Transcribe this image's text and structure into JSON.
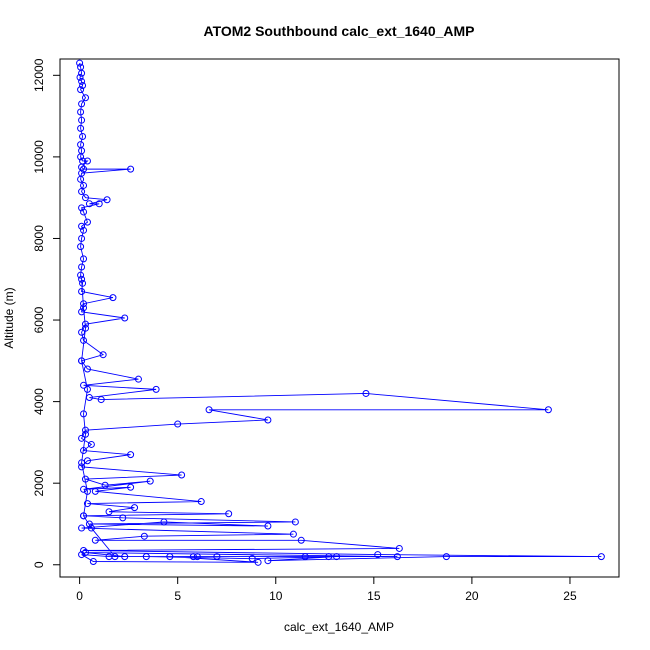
{
  "chart_data": {
    "type": "scatter",
    "title": "ATOM2 Southbound calc_ext_1640_AMP",
    "xlabel": "calc_ext_1640_AMP",
    "ylabel": "Altitude (m)",
    "xlim": [
      -1,
      27.5
    ],
    "ylim": [
      -300,
      12400
    ],
    "x_ticks": [
      0,
      5,
      10,
      15,
      20,
      25
    ],
    "y_ticks": [
      0,
      2000,
      4000,
      6000,
      8000,
      10000,
      12000
    ],
    "grid": false,
    "color": "#0000ff",
    "marker": "open-circle",
    "connected": true,
    "points": [
      [
        0.0,
        12300
      ],
      [
        0.05,
        12200
      ],
      [
        0.1,
        12050
      ],
      [
        0.02,
        11950
      ],
      [
        0.1,
        11850
      ],
      [
        0.15,
        11750
      ],
      [
        0.05,
        11650
      ],
      [
        0.3,
        11450
      ],
      [
        0.1,
        11300
      ],
      [
        0.05,
        11100
      ],
      [
        0.1,
        10900
      ],
      [
        0.05,
        10700
      ],
      [
        0.15,
        10500
      ],
      [
        0.05,
        10300
      ],
      [
        0.1,
        10150
      ],
      [
        0.05,
        10000
      ],
      [
        0.15,
        9900
      ],
      [
        0.4,
        9900
      ],
      [
        0.1,
        9750
      ],
      [
        0.2,
        9700
      ],
      [
        2.6,
        9700
      ],
      [
        0.1,
        9600
      ],
      [
        0.05,
        9450
      ],
      [
        0.2,
        9300
      ],
      [
        0.1,
        9150
      ],
      [
        0.3,
        9000
      ],
      [
        1.4,
        8950
      ],
      [
        0.5,
        8850
      ],
      [
        1.0,
        8850
      ],
      [
        0.1,
        8750
      ],
      [
        0.2,
        8650
      ],
      [
        0.4,
        8400
      ],
      [
        0.1,
        8300
      ],
      [
        0.2,
        8200
      ],
      [
        0.1,
        8000
      ],
      [
        0.05,
        7800
      ],
      [
        0.2,
        7500
      ],
      [
        0.1,
        7300
      ],
      [
        0.05,
        7100
      ],
      [
        0.15,
        6900
      ],
      [
        0.1,
        6700
      ],
      [
        1.7,
        6550
      ],
      [
        0.2,
        6400
      ],
      [
        0.1,
        6200
      ],
      [
        2.3,
        6050
      ],
      [
        0.3,
        5900
      ],
      [
        0.1,
        5700
      ],
      [
        0.2,
        5500
      ],
      [
        1.2,
        5150
      ],
      [
        0.1,
        5000
      ],
      [
        0.4,
        4800
      ],
      [
        3.0,
        4550
      ],
      [
        0.2,
        4400
      ],
      [
        3.9,
        4300
      ],
      [
        0.5,
        4100
      ],
      [
        1.1,
        4050
      ],
      [
        14.6,
        4200
      ],
      [
        23.9,
        3800
      ],
      [
        6.6,
        3800
      ],
      [
        9.6,
        3550
      ],
      [
        5.0,
        3450
      ],
      [
        0.3,
        3300
      ],
      [
        0.1,
        3100
      ],
      [
        0.6,
        2950
      ],
      [
        0.2,
        2800
      ],
      [
        2.6,
        2700
      ],
      [
        0.4,
        2550
      ],
      [
        0.1,
        2400
      ],
      [
        5.2,
        2200
      ],
      [
        0.3,
        2100
      ],
      [
        1.3,
        1950
      ],
      [
        3.6,
        2050
      ],
      [
        0.2,
        1850
      ],
      [
        2.6,
        1900
      ],
      [
        0.8,
        1800
      ],
      [
        6.2,
        1550
      ],
      [
        0.4,
        1500
      ],
      [
        2.8,
        1400
      ],
      [
        1.5,
        1300
      ],
      [
        7.6,
        1250
      ],
      [
        0.2,
        1200
      ],
      [
        2.2,
        1150
      ],
      [
        11.0,
        1050
      ],
      [
        0.5,
        1000
      ],
      [
        9.6,
        950
      ],
      [
        4.3,
        1050
      ],
      [
        0.1,
        900
      ],
      [
        10.9,
        750
      ],
      [
        3.3,
        700
      ],
      [
        0.8,
        600
      ],
      [
        11.3,
        600
      ],
      [
        16.3,
        400
      ],
      [
        0.2,
        350
      ],
      [
        15.2,
        250
      ],
      [
        26.6,
        200
      ],
      [
        18.7,
        200
      ],
      [
        9.6,
        100
      ],
      [
        13.1,
        200
      ],
      [
        8.8,
        150
      ],
      [
        3.4,
        200
      ],
      [
        6.0,
        200
      ],
      [
        1.5,
        200
      ],
      [
        0.1,
        250
      ],
      [
        0.7,
        80
      ],
      [
        9.1,
        60
      ],
      [
        4.6,
        200
      ],
      [
        7.0,
        200
      ],
      [
        11.5,
        200
      ],
      [
        2.3,
        200
      ],
      [
        0.3,
        300
      ],
      [
        16.2,
        200
      ],
      [
        12.7,
        200
      ],
      [
        5.8,
        200
      ],
      [
        1.8,
        200
      ],
      [
        0.6,
        900
      ],
      [
        0.2,
        1200
      ],
      [
        0.4,
        1800
      ],
      [
        0.1,
        2500
      ],
      [
        0.3,
        3200
      ],
      [
        0.2,
        3700
      ],
      [
        0.4,
        4300
      ],
      [
        0.1,
        5000
      ],
      [
        0.3,
        5800
      ],
      [
        0.2,
        6300
      ],
      [
        0.1,
        7000
      ]
    ]
  }
}
